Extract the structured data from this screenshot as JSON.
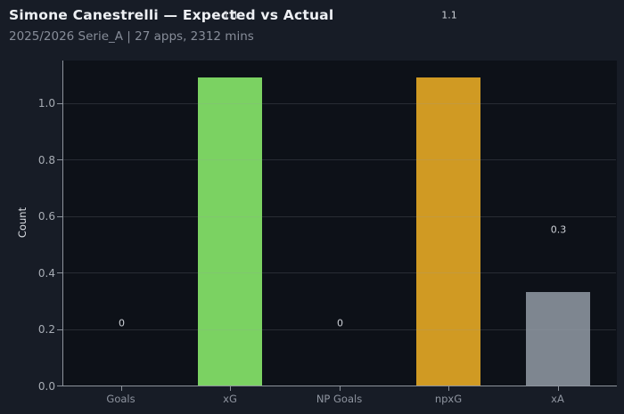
{
  "header": {
    "title": "Simone Canestrelli — Expected vs Actual",
    "subtitle": "2025/2026 Serie_A | 27 apps, 2312 mins"
  },
  "chart_data": {
    "type": "bar",
    "title": "Simone Canestrelli — Expected vs Actual",
    "subtitle": "2025/2026 Serie_A | 27 apps, 2312 mins",
    "xlabel": "",
    "ylabel": "Count",
    "categories": [
      "Goals",
      "xG",
      "NP Goals",
      "npxG",
      "xA"
    ],
    "values": [
      0,
      1.09,
      0,
      1.09,
      0.33
    ],
    "value_labels": [
      "0",
      "1.1",
      "0",
      "1.1",
      "0.3"
    ],
    "bar_colors": [
      null,
      "#7bd262",
      null,
      "#d09a23",
      "#7e8690"
    ],
    "ylim": [
      0,
      1.15
    ],
    "yticks": [
      {
        "value": 0.0,
        "label": "0.0"
      },
      {
        "value": 0.2,
        "label": "0.2"
      },
      {
        "value": 0.4,
        "label": "0.4"
      },
      {
        "value": 0.6,
        "label": "0.6"
      },
      {
        "value": 0.8,
        "label": "0.8"
      },
      {
        "value": 1.0,
        "label": "1.0"
      }
    ],
    "grid": true,
    "legend": false
  },
  "colors": {
    "page_bg": "#171c26",
    "plot_bg": "#0d1118",
    "spine": "#8d939c",
    "grid": "rgba(150,156,166,0.20)",
    "title_text": "#eef0f4",
    "subtitle_text": "#878d99",
    "ytick_text": "#a8adb5",
    "xtick_text": "#8f95a0",
    "ylabel_text": "#dbdee3",
    "data_label_text": "#ced2d8",
    "bar_green": "#7bd262",
    "bar_orange": "#d09a23",
    "bar_gray": "#7e8690"
  }
}
